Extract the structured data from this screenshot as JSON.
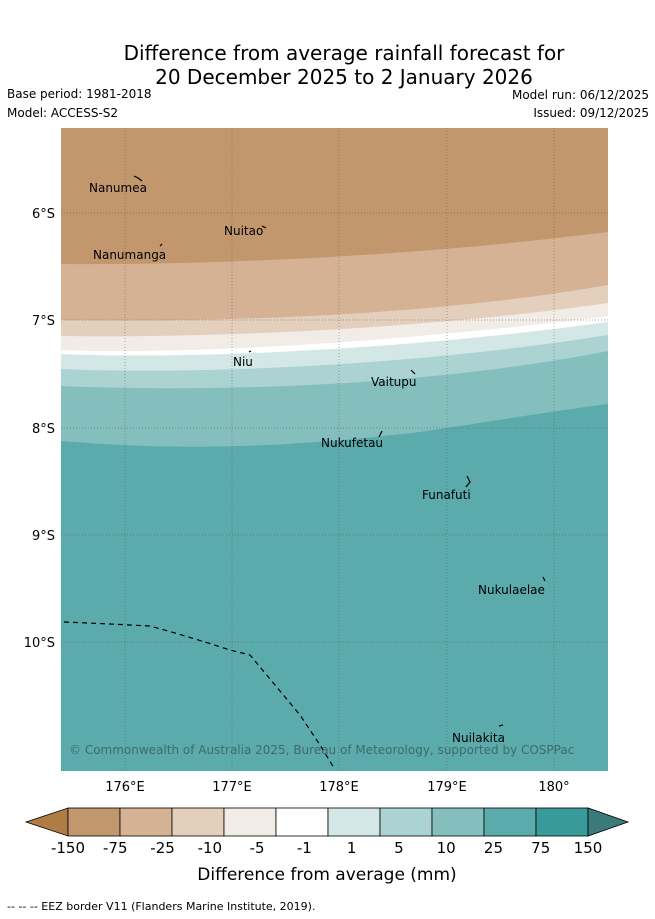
{
  "title": {
    "line1": "Difference from average rainfall forecast for",
    "line2": "20 December 2025 to 2 January 2026"
  },
  "meta": {
    "base_period": "Base period: 1981-2018",
    "model": "Model: ACCESS-S2",
    "model_run": "Model run: 06/12/2025",
    "issued": "Issued: 09/12/2025"
  },
  "axes": {
    "lon_ticks": [
      "176°E",
      "177°E",
      "178°E",
      "179°E",
      "180°"
    ],
    "lat_ticks": [
      "6°S",
      "7°S",
      "8°S",
      "9°S",
      "10°S"
    ]
  },
  "places": [
    "Nanumea",
    "Nuitao",
    "Nanumanga",
    "Niu",
    "Vaitupu",
    "Nukufetau",
    "Funafuti",
    "Nukulaelae",
    "Nuilakita"
  ],
  "copyright": "© Commonwealth of Australia 2025, Bureau of Meteorology, supported by COSPPac",
  "legend": {
    "title": "Difference from average (mm)",
    "ticks": [
      "-150",
      "-75",
      "-25",
      "-10",
      "-5",
      "-1",
      "1",
      "5",
      "10",
      "25",
      "75",
      "150"
    ],
    "colors": [
      "#b07c45",
      "#c2976d",
      "#d4b293",
      "#e4cfbd",
      "#f2ece7",
      "#ffffff",
      "#d3e7e6",
      "#aad3d2",
      "#84bfbe",
      "#5babac",
      "#389b9a",
      "#3a7b7a"
    ]
  },
  "footnote": "--  --  -- EEZ border V11 (Flanders Marine Institute, 2019)."
}
